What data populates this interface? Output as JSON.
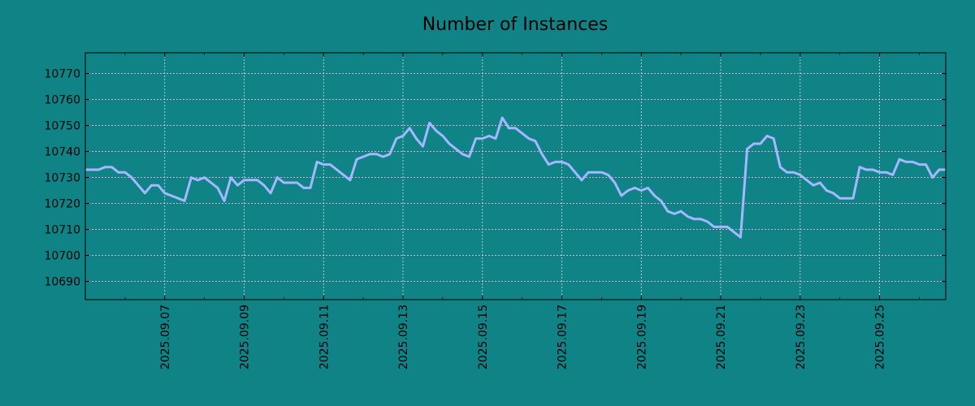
{
  "chart_data": {
    "type": "line",
    "title": "Number of Instances",
    "xlabel": "",
    "ylabel": "",
    "x_ticks": [
      "2025.09.07",
      "2025.09.09",
      "2025.09.11",
      "2025.09.13",
      "2025.09.15",
      "2025.09.17",
      "2025.09.19",
      "2025.09.21",
      "2025.09.23",
      "2025.09.25"
    ],
    "y_ticks": [
      10690,
      10700,
      10710,
      10720,
      10730,
      10740,
      10750,
      10760,
      10770
    ],
    "xlim": [
      "2025-09-05T00:00",
      "2025-09-26T16:00"
    ],
    "ylim": [
      10683,
      10778
    ],
    "grid": true,
    "colors": {
      "background": "#108387",
      "line": "#a4b8ff",
      "grid": "#d0e0e0",
      "axis": "#000000"
    },
    "series": [
      {
        "x": [
          "2025-09-05T00:00",
          "2025-09-05T08:00",
          "2025-09-05T12:00",
          "2025-09-05T16:00",
          "2025-09-05T20:00",
          "2025-09-06T00:00",
          "2025-09-06T04:00",
          "2025-09-06T08:00",
          "2025-09-06T12:00",
          "2025-09-06T16:00",
          "2025-09-06T20:00",
          "2025-09-07T00:00",
          "2025-09-07T04:00",
          "2025-09-07T08:00",
          "2025-09-07T12:00",
          "2025-09-07T16:00",
          "2025-09-07T20:00",
          "2025-09-08T00:00",
          "2025-09-08T04:00",
          "2025-09-08T08:00",
          "2025-09-08T12:00",
          "2025-09-08T16:00",
          "2025-09-08T20:00",
          "2025-09-09T00:00",
          "2025-09-09T04:00",
          "2025-09-09T08:00",
          "2025-09-09T12:00",
          "2025-09-09T16:00",
          "2025-09-09T20:00",
          "2025-09-10T00:00",
          "2025-09-10T04:00",
          "2025-09-10T08:00",
          "2025-09-10T12:00",
          "2025-09-10T16:00",
          "2025-09-10T20:00",
          "2025-09-11T00:00",
          "2025-09-11T04:00",
          "2025-09-11T08:00",
          "2025-09-11T12:00",
          "2025-09-11T16:00",
          "2025-09-11T20:00",
          "2025-09-12T00:00",
          "2025-09-12T04:00",
          "2025-09-12T08:00",
          "2025-09-12T12:00",
          "2025-09-12T16:00",
          "2025-09-12T20:00",
          "2025-09-13T00:00",
          "2025-09-13T04:00",
          "2025-09-13T08:00",
          "2025-09-13T12:00",
          "2025-09-13T16:00",
          "2025-09-13T20:00",
          "2025-09-14T00:00",
          "2025-09-14T04:00",
          "2025-09-14T08:00",
          "2025-09-14T12:00",
          "2025-09-14T16:00",
          "2025-09-14T20:00",
          "2025-09-15T00:00",
          "2025-09-15T04:00",
          "2025-09-15T08:00",
          "2025-09-15T12:00",
          "2025-09-15T16:00",
          "2025-09-15T20:00",
          "2025-09-16T00:00",
          "2025-09-16T04:00",
          "2025-09-16T08:00",
          "2025-09-16T12:00",
          "2025-09-16T16:00",
          "2025-09-16T20:00",
          "2025-09-17T00:00",
          "2025-09-17T04:00",
          "2025-09-17T08:00",
          "2025-09-17T12:00",
          "2025-09-17T16:00",
          "2025-09-17T20:00",
          "2025-09-18T00:00",
          "2025-09-18T04:00",
          "2025-09-18T08:00",
          "2025-09-18T12:00",
          "2025-09-18T16:00",
          "2025-09-18T20:00",
          "2025-09-19T00:00",
          "2025-09-19T04:00",
          "2025-09-19T08:00",
          "2025-09-19T12:00",
          "2025-09-19T16:00",
          "2025-09-19T20:00",
          "2025-09-20T00:00",
          "2025-09-20T04:00",
          "2025-09-20T08:00",
          "2025-09-20T12:00",
          "2025-09-20T16:00",
          "2025-09-20T20:00",
          "2025-09-21T00:00",
          "2025-09-21T04:00",
          "2025-09-21T08:00",
          "2025-09-21T12:00",
          "2025-09-21T16:00",
          "2025-09-21T20:00",
          "2025-09-22T00:00",
          "2025-09-22T04:00",
          "2025-09-22T08:00",
          "2025-09-22T12:00",
          "2025-09-22T16:00",
          "2025-09-22T20:00",
          "2025-09-23T00:00",
          "2025-09-23T04:00",
          "2025-09-23T08:00",
          "2025-09-23T12:00",
          "2025-09-23T16:00",
          "2025-09-23T20:00",
          "2025-09-24T00:00",
          "2025-09-24T04:00",
          "2025-09-24T08:00",
          "2025-09-24T12:00",
          "2025-09-24T16:00",
          "2025-09-24T20:00",
          "2025-09-25T00:00",
          "2025-09-25T04:00",
          "2025-09-25T08:00",
          "2025-09-25T12:00",
          "2025-09-25T16:00",
          "2025-09-25T20:00",
          "2025-09-26T00:00",
          "2025-09-26T04:00",
          "2025-09-26T08:00",
          "2025-09-26T12:00",
          "2025-09-26T16:00"
        ],
        "y": [
          10733,
          10733,
          10734,
          10734,
          10732,
          10732,
          10730,
          10727,
          10724,
          10727,
          10727,
          10724,
          10723,
          10722,
          10721,
          10730,
          10729,
          10730,
          10728,
          10726,
          10721,
          10730,
          10727,
          10729,
          10729,
          10729,
          10727,
          10724,
          10730,
          10728,
          10728,
          10728,
          10726,
          10726,
          10736,
          10735,
          10735,
          10733,
          10731,
          10729,
          10737,
          10738,
          10739,
          10739,
          10738,
          10739,
          10745,
          10746,
          10749,
          10745,
          10742,
          10751,
          10748,
          10746,
          10743,
          10741,
          10739,
          10738,
          10745,
          10745,
          10746,
          10745,
          10753,
          10749,
          10749,
          10747,
          10745,
          10744,
          10739,
          10735,
          10736,
          10736,
          10735,
          10732,
          10729,
          10732,
          10732,
          10732,
          10731,
          10728,
          10723,
          10725,
          10726,
          10725,
          10726,
          10723,
          10721,
          10717,
          10716,
          10717,
          10715,
          10714,
          10714,
          10713,
          10711,
          10711,
          10711,
          10709,
          10707,
          10741,
          10743,
          10743,
          10746,
          10745,
          10734,
          10732,
          10732,
          10731,
          10729,
          10727,
          10728,
          10725,
          10724,
          10722,
          10722,
          10722,
          10734,
          10733,
          10733,
          10732,
          10732,
          10731,
          10737,
          10736,
          10736,
          10735,
          10735,
          10730,
          10733,
          10733
        ]
      }
    ]
  }
}
